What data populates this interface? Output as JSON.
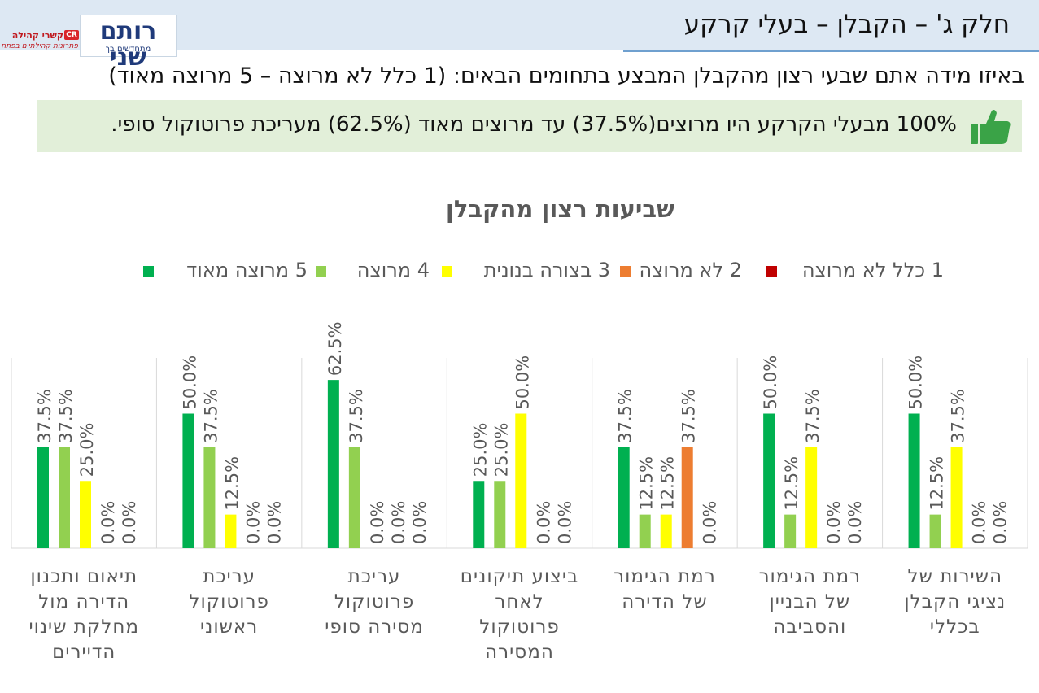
{
  "header": {
    "title": "חלק ג' – הקבלן – בעלי קרקע",
    "logo": "רותם שני",
    "logo_sub": "מתחדשים בך",
    "partner_name": "קשרי קהילה",
    "partner_badge": "CR",
    "partner_tagline": "פתרונות קהילתיים בפתח"
  },
  "question": "באיזו מידה אתם שבעי רצון מהקבלן המבצע בתחומים הבאים:   (1 כלל לא מרוצה – 5 מרוצה מאוד)",
  "highlight": {
    "text": "100% מבעלי הקרקע היו מרוצים(37.5%) עד מרוצים מאוד (62.5%) מעריכת פרוטוקול סופי.",
    "icon": "thumbs-up-icon"
  },
  "chart_data": {
    "type": "bar",
    "title": "שביעות רצון מהקבלן",
    "legend_position": "top",
    "grid": false,
    "ylim": [
      0,
      0.8
    ],
    "categories": [
      "תיאום ותכנון הדירה מול מחלקת שינוי הדיירים",
      "עריכת פרוטוקול ראשוני",
      "עריכת פרוטוקול מסירה סופי",
      "ביצוע תיקונים לאחר פרוטוקול המסירה",
      "רמת הגימור של הדירה",
      "רמת הגימור של הבניין והסביבה",
      "השירות של נציגי הקבלן בכללי"
    ],
    "category_lines": [
      [
        "תיאום ותכנון",
        "הדירה מול",
        "מחלקת שינוי",
        "הדיירים"
      ],
      [
        "עריכת",
        "פרוטוקול",
        "ראשוני"
      ],
      [
        "עריכת",
        "פרוטוקול",
        "מסירה סופי"
      ],
      [
        "ביצוע תיקונים",
        "לאחר",
        "פרוטוקול",
        "המסירה"
      ],
      [
        "רמת הגימור",
        "של הדירה"
      ],
      [
        "רמת הגימור",
        "של הבניין",
        "והסביבה"
      ],
      [
        "השירות של",
        "נציגי הקבלן",
        "בכללי"
      ]
    ],
    "series": [
      {
        "name": "5 מרוצה מאוד",
        "color": "#00b050",
        "values": [
          0.375,
          0.5,
          0.625,
          0.25,
          0.375,
          0.5,
          0.5
        ]
      },
      {
        "name": "4 מרוצה",
        "color": "#92d050",
        "values": [
          0.375,
          0.375,
          0.375,
          0.25,
          0.125,
          0.125,
          0.125
        ]
      },
      {
        "name": "3 בצורה בנונית",
        "color": "#ffff00",
        "values": [
          0.25,
          0.125,
          0.0,
          0.5,
          0.125,
          0.375,
          0.375
        ]
      },
      {
        "name": "2 לא מרוצה",
        "color": "#ed7d31",
        "values": [
          0.0,
          0.0,
          0.0,
          0.0,
          0.375,
          0.0,
          0.0
        ]
      },
      {
        "name": "1 כלל לא מרוצה",
        "color": "#c00000",
        "values": [
          0.0,
          0.0,
          0.0,
          0.0,
          0.0,
          0.0,
          0.0
        ]
      }
    ],
    "data_labels": [
      [
        "37.5%",
        "50.0%",
        "62.5%",
        "25.0%",
        "37.5%",
        "50.0%",
        "50.0%"
      ],
      [
        "37.5%",
        "37.5%",
        "37.5%",
        "25.0%",
        "12.5%",
        "12.5%",
        "12.5%"
      ],
      [
        "25.0%",
        "12.5%",
        "0.0%",
        "50.0%",
        "12.5%",
        "37.5%",
        "37.5%"
      ],
      [
        "0.0%",
        "0.0%",
        "0.0%",
        "0.0%",
        "37.5%",
        "0.0%",
        "0.0%"
      ],
      [
        "0.0%",
        "0.0%",
        "0.0%",
        "0.0%",
        "0.0%",
        "0.0%",
        "0.0%"
      ]
    ]
  }
}
